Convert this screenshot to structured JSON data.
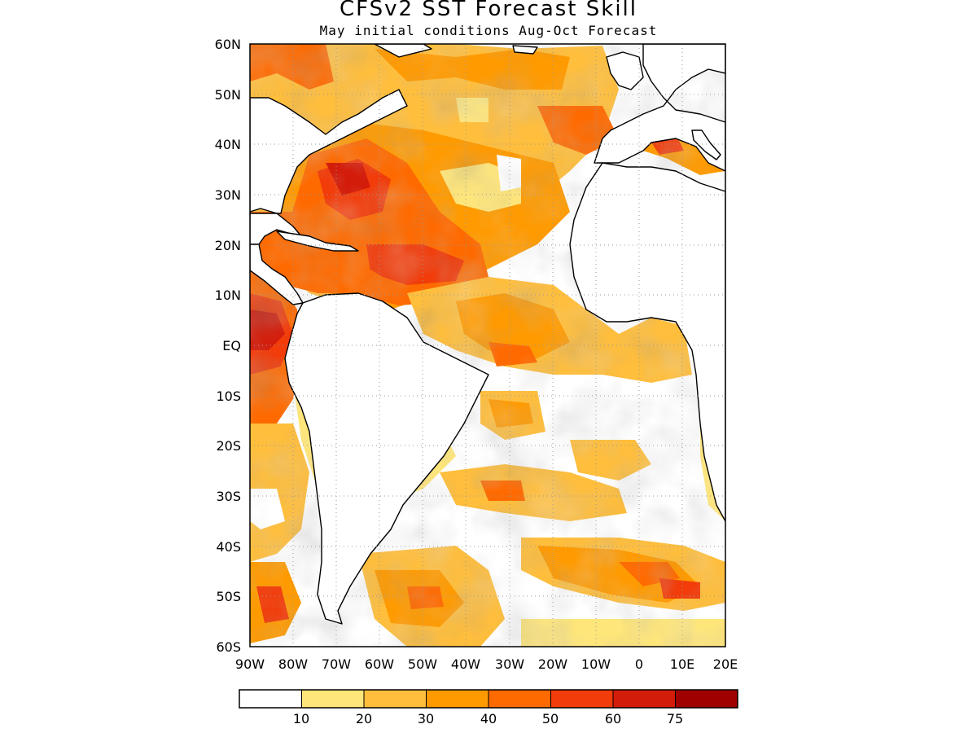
{
  "map": {
    "title": "CFSv2 SST Forecast Skill",
    "subtitle": "May initial conditions  Aug-Oct Forecast",
    "lat_labels": [
      "60N",
      "50N",
      "40N",
      "30N",
      "20N",
      "10N",
      "EQ",
      "10S",
      "20S",
      "30S",
      "40S",
      "50S",
      "60S"
    ],
    "lon_labels": [
      "90W",
      "80W",
      "70W",
      "60W",
      "50W",
      "40W",
      "30W",
      "20W",
      "10W",
      "0",
      "10E",
      "20E"
    ],
    "extent": {
      "lon": [
        -90,
        20
      ],
      "lat": [
        -60,
        60
      ]
    }
  },
  "legend": {
    "breaks": [
      "10",
      "20",
      "30",
      "40",
      "50",
      "60",
      "75"
    ],
    "colors": [
      "#ffffff",
      "#ffe67a",
      "#ffbe3c",
      "#ff9a00",
      "#ff6a00",
      "#f23c0a",
      "#d41c0a",
      "#a00000"
    ]
  }
}
